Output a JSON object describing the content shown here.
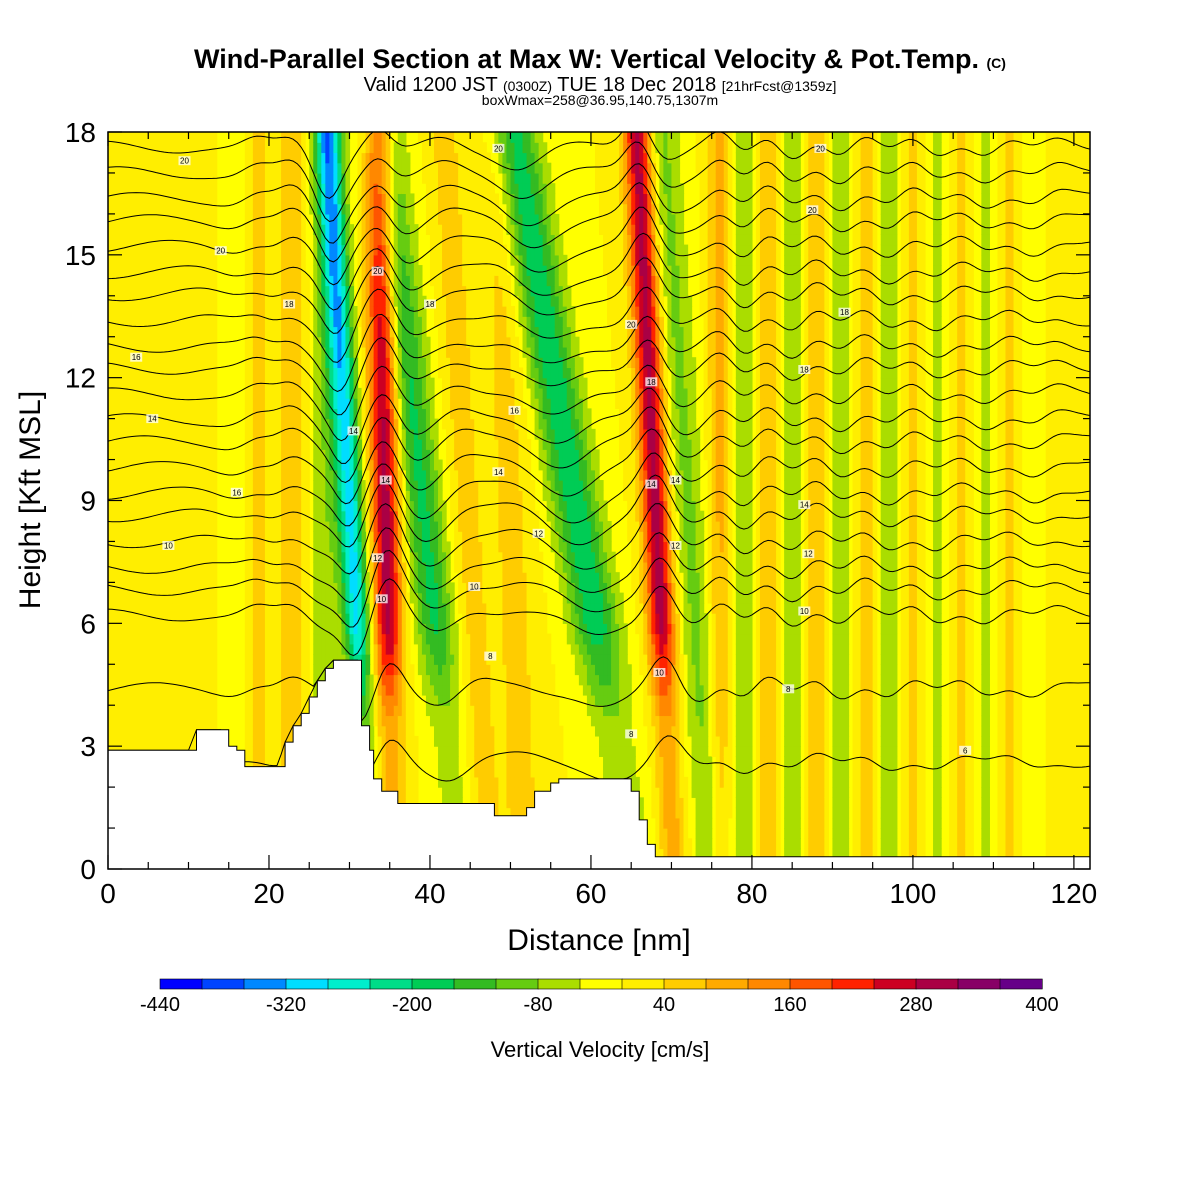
{
  "title": {
    "main": "Wind-Parallel Section at Max W: Vertical Velocity & Pot.Temp.",
    "main_suffix": "(C)",
    "valid_a": "Valid 1200 JST",
    "valid_b": "(0300Z)",
    "valid_c": "TUE 18 Dec 2018",
    "valid_d": "[21hrFcst@1359z]",
    "box": "boxWmax=258@36.95,140.75,1307m"
  },
  "chart_data": {
    "type": "heatmap",
    "xlabel": "Distance [nm]",
    "ylabel": "Height [Kft MSL]",
    "xlim": [
      0,
      122
    ],
    "ylim": [
      0,
      18
    ],
    "x_ticks": [
      "0",
      "20",
      "40",
      "60",
      "80",
      "100",
      "120"
    ],
    "y_ticks": [
      "0",
      "3",
      "6",
      "9",
      "12",
      "15",
      "18"
    ],
    "colorbar": {
      "title": "Vertical Velocity [cm/s]",
      "tick_labels": [
        "-440",
        "-320",
        "-200",
        "-80",
        "40",
        "160",
        "280",
        "400"
      ],
      "levels": [
        -440,
        -400,
        -360,
        -320,
        -280,
        -240,
        -200,
        -160,
        -120,
        -80,
        -40,
        0,
        40,
        80,
        120,
        160,
        200,
        240,
        280,
        320,
        360,
        400
      ],
      "colors": [
        "#0000ff",
        "#0044ff",
        "#0088ff",
        "#00ddff",
        "#00eecc",
        "#00dd88",
        "#00cc55",
        "#33bb22",
        "#66cc11",
        "#aadd00",
        "#ffff00",
        "#ffee00",
        "#ffcc00",
        "#ffaa00",
        "#ff8800",
        "#ff5500",
        "#ff2200",
        "#cc0022",
        "#aa0044",
        "#880066",
        "#660088"
      ]
    },
    "terrain_kft": [
      [
        0,
        2.9
      ],
      [
        10,
        2.9
      ],
      [
        11,
        3.4
      ],
      [
        14,
        3.4
      ],
      [
        15,
        3.0
      ],
      [
        16,
        2.9
      ],
      [
        17,
        2.5
      ],
      [
        21,
        2.5
      ],
      [
        22,
        3.1
      ],
      [
        23,
        3.5
      ],
      [
        24,
        3.8
      ],
      [
        25,
        4.2
      ],
      [
        26,
        4.6
      ],
      [
        27,
        4.9
      ],
      [
        28,
        5.1
      ],
      [
        31,
        5.1
      ],
      [
        31.5,
        3.5
      ],
      [
        32.5,
        2.9
      ],
      [
        33,
        2.2
      ],
      [
        34,
        1.9
      ],
      [
        36,
        1.6
      ],
      [
        47,
        1.6
      ],
      [
        48,
        1.3
      ],
      [
        51,
        1.3
      ],
      [
        52,
        1.5
      ],
      [
        53,
        1.9
      ],
      [
        55,
        2.1
      ],
      [
        56,
        2.2
      ],
      [
        64,
        2.2
      ],
      [
        65,
        1.9
      ],
      [
        66,
        1.2
      ],
      [
        67,
        0.6
      ],
      [
        68,
        0.3
      ],
      [
        122,
        0.3
      ]
    ],
    "w_features": [
      {
        "x": 13.5,
        "w": 25,
        "width": 2.5,
        "tilt": 0
      },
      {
        "x": 15.0,
        "w": -40,
        "width": 2.5,
        "tilt": 0
      },
      {
        "x": 19.0,
        "w": 70,
        "width": 1.8,
        "tilt": 0
      },
      {
        "x": 20.5,
        "w": -55,
        "width": 1.5,
        "tilt": 0
      },
      {
        "x": 22.5,
        "w": 80,
        "width": 1.8,
        "tilt": 0
      },
      {
        "x": 27.0,
        "w": -70,
        "width": 1.8,
        "tilt": 0
      },
      {
        "x": 30.0,
        "w": -300,
        "width": 1.6,
        "tilt": 0.3
      },
      {
        "x": 34.5,
        "w": 300,
        "width": 1.8,
        "tilt": 0.1
      },
      {
        "x": 39.0,
        "w": -170,
        "width": 2.5,
        "tilt": 0.55
      },
      {
        "x": 44.5,
        "w": 60,
        "width": 2.0,
        "tilt": 0.3
      },
      {
        "x": 50.0,
        "w": 55,
        "width": 2.5,
        "tilt": 0.2
      },
      {
        "x": 58.0,
        "w": -190,
        "width": 3.0,
        "tilt": 0.85
      },
      {
        "x": 68.0,
        "w": 300,
        "width": 1.7,
        "tilt": 0.25
      },
      {
        "x": 72.0,
        "w": -90,
        "width": 2.2,
        "tilt": 0.35
      },
      {
        "x": 76.0,
        "w": 90,
        "width": 1.5,
        "tilt": 0
      },
      {
        "x": 79.0,
        "w": -80,
        "width": 1.5,
        "tilt": 0
      },
      {
        "x": 82.0,
        "w": 75,
        "width": 1.5,
        "tilt": 0
      },
      {
        "x": 85.0,
        "w": -70,
        "width": 1.5,
        "tilt": 0
      },
      {
        "x": 88.0,
        "w": 70,
        "width": 1.5,
        "tilt": 0
      },
      {
        "x": 91.0,
        "w": -65,
        "width": 1.5,
        "tilt": 0
      },
      {
        "x": 94.0,
        "w": 60,
        "width": 1.5,
        "tilt": 0
      },
      {
        "x": 97.0,
        "w": -60,
        "width": 1.5,
        "tilt": 0
      },
      {
        "x": 100.0,
        "w": 55,
        "width": 1.5,
        "tilt": 0
      },
      {
        "x": 103.0,
        "w": -55,
        "width": 1.5,
        "tilt": 0
      },
      {
        "x": 106.0,
        "w": 50,
        "width": 1.5,
        "tilt": 0
      },
      {
        "x": 109.0,
        "w": -45,
        "width": 1.5,
        "tilt": 0
      },
      {
        "x": 112.0,
        "w": 45,
        "width": 1.5,
        "tilt": 0
      },
      {
        "x": 115.0,
        "w": -40,
        "width": 1.5,
        "tilt": 0
      },
      {
        "x": 118.0,
        "w": 40,
        "width": 1.5,
        "tilt": 0
      }
    ],
    "theta_contours_c": [
      4,
      6,
      8,
      8.7,
      9.3,
      10,
      10.7,
      11.3,
      12,
      12.7,
      13.3,
      14,
      14.7,
      15.3,
      16,
      16.7,
      17.3,
      18,
      18.7,
      19.3,
      20,
      20.7
    ],
    "theta_labels": [
      {
        "text": "20",
        "x": 9.5,
        "y": 17.3
      },
      {
        "text": "20",
        "x": 48.5,
        "y": 17.6
      },
      {
        "text": "20",
        "x": 88.5,
        "y": 17.6
      },
      {
        "text": "20",
        "x": 14,
        "y": 15.1
      },
      {
        "text": "20",
        "x": 33.5,
        "y": 14.6
      },
      {
        "text": "20",
        "x": 87.5,
        "y": 16.1
      },
      {
        "text": "20",
        "x": 65,
        "y": 13.3
      },
      {
        "text": "18",
        "x": 22.5,
        "y": 13.8
      },
      {
        "text": "18",
        "x": 40,
        "y": 13.8
      },
      {
        "text": "18",
        "x": 67.5,
        "y": 11.9
      },
      {
        "text": "18",
        "x": 91.5,
        "y": 13.6
      },
      {
        "text": "18",
        "x": 86.5,
        "y": 12.2
      },
      {
        "text": "16",
        "x": 3.5,
        "y": 12.5
      },
      {
        "text": "16",
        "x": 50.5,
        "y": 11.2
      },
      {
        "text": "14",
        "x": 5.5,
        "y": 11.0
      },
      {
        "text": "14",
        "x": 30.5,
        "y": 10.7
      },
      {
        "text": "14",
        "x": 34.5,
        "y": 9.5
      },
      {
        "text": "14",
        "x": 48.5,
        "y": 9.7
      },
      {
        "text": "14",
        "x": 67.5,
        "y": 9.4
      },
      {
        "text": "14",
        "x": 70.5,
        "y": 9.5
      },
      {
        "text": "14",
        "x": 86.5,
        "y": 8.9
      },
      {
        "text": "16",
        "x": 16,
        "y": 9.2
      },
      {
        "text": "10",
        "x": 7.5,
        "y": 7.9
      },
      {
        "text": "12",
        "x": 33.5,
        "y": 7.6
      },
      {
        "text": "12",
        "x": 53.5,
        "y": 8.2
      },
      {
        "text": "12",
        "x": 70.5,
        "y": 7.9
      },
      {
        "text": "12",
        "x": 87,
        "y": 7.7
      },
      {
        "text": "10",
        "x": 34,
        "y": 6.6
      },
      {
        "text": "10",
        "x": 45.5,
        "y": 6.9
      },
      {
        "text": "10",
        "x": 86.5,
        "y": 6.3
      },
      {
        "text": "10",
        "x": 68.5,
        "y": 4.8
      },
      {
        "text": "8",
        "x": 47.5,
        "y": 5.2
      },
      {
        "text": "8",
        "x": 65,
        "y": 3.3
      },
      {
        "text": "8",
        "x": 84.5,
        "y": 4.4
      },
      {
        "text": "6",
        "x": 106.5,
        "y": 2.9
      }
    ]
  }
}
